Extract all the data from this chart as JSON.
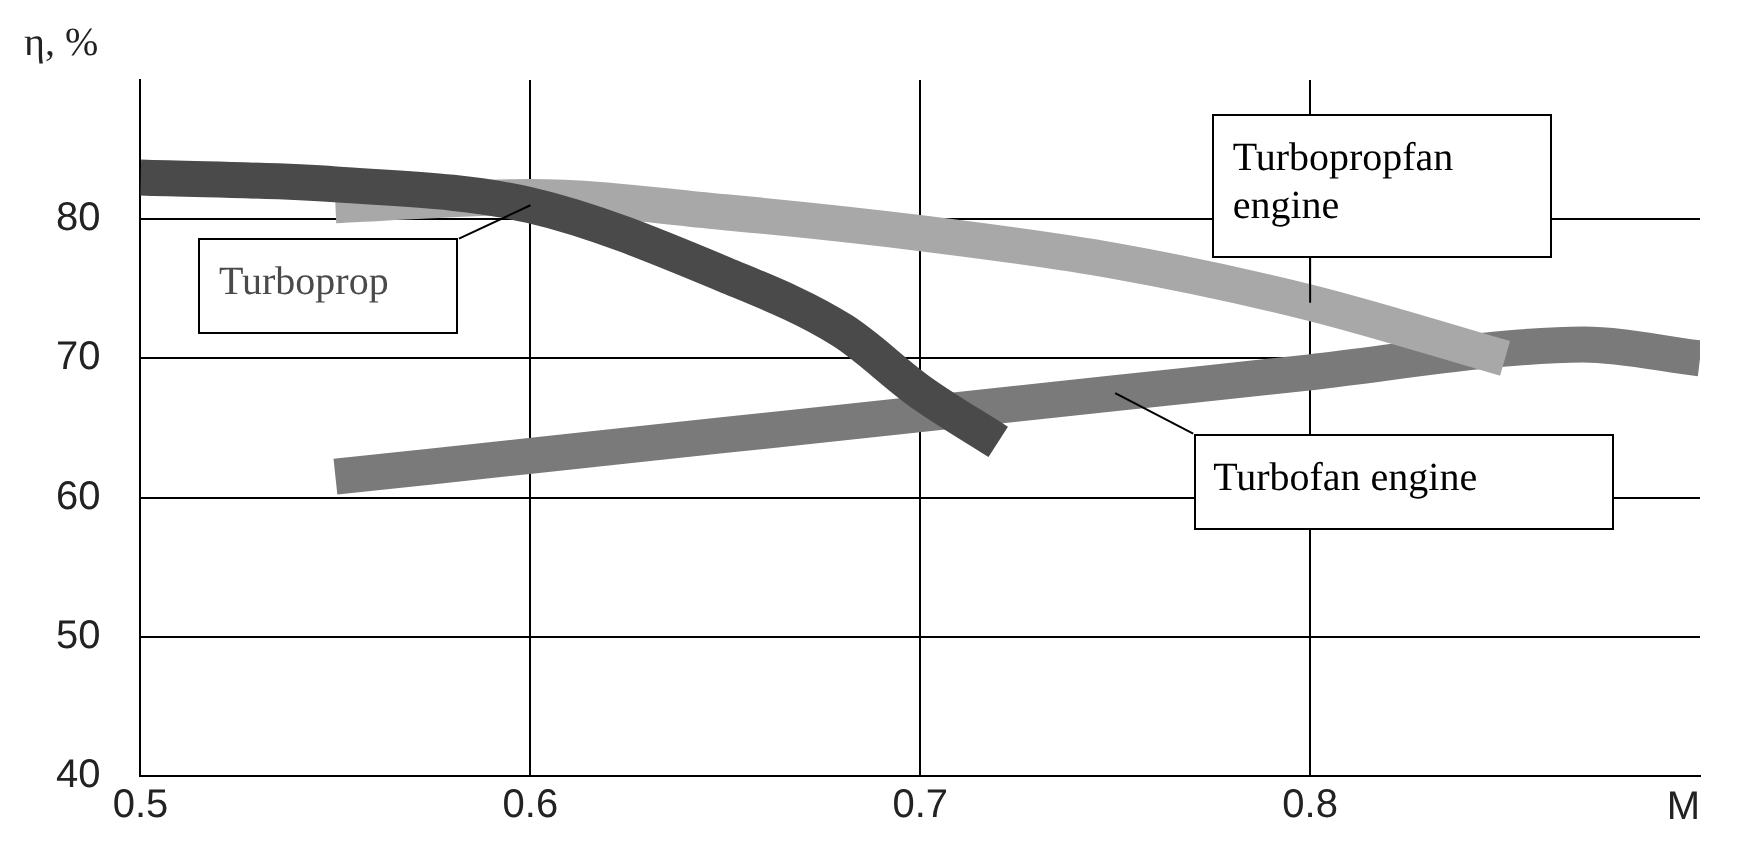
{
  "chart_data": {
    "type": "line",
    "ylabel": "η, %",
    "xlabel": "M",
    "xlim": [
      0.5,
      0.9
    ],
    "xticks": [
      0.5,
      0.6,
      0.7,
      0.8
    ],
    "ylim": [
      40,
      90
    ],
    "yticks": [
      40,
      50,
      60,
      70,
      80
    ],
    "grid": true,
    "legend": false,
    "marker": "none",
    "series": [
      {
        "name": "Turboprop",
        "color": "#4a4a4a",
        "x": [
          0.5,
          0.55,
          0.6,
          0.65,
          0.68,
          0.7,
          0.72
        ],
        "values": [
          83,
          82.5,
          81,
          76,
          72,
          67.6,
          64
        ]
      },
      {
        "name": "Turbopropfan engine",
        "color": "#a8a8a8",
        "x": [
          0.55,
          0.6,
          0.65,
          0.7,
          0.75,
          0.8,
          0.85
        ],
        "values": [
          81,
          81.6,
          80.5,
          79,
          77,
          74,
          70
        ]
      },
      {
        "name": "Turbofan engine",
        "color": "#7a7a7a",
        "x": [
          0.55,
          0.6,
          0.65,
          0.7,
          0.75,
          0.8,
          0.85,
          0.87,
          0.9
        ],
        "values": [
          61.5,
          63,
          64.5,
          66,
          67.5,
          69,
          70.7,
          71,
          70
        ]
      }
    ]
  }
}
